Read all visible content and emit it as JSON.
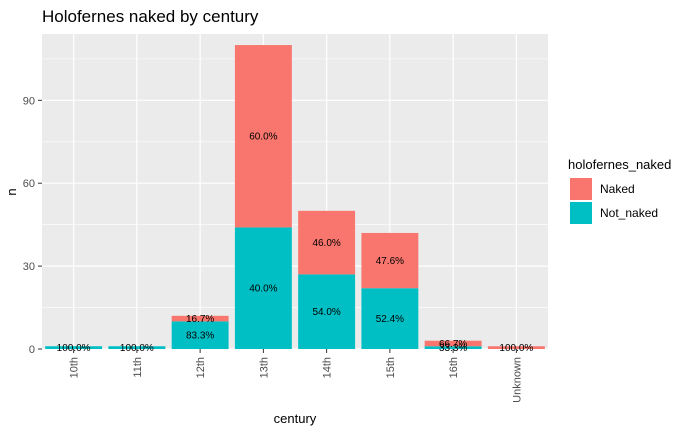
{
  "chart_data": {
    "type": "bar",
    "stacked": true,
    "title": "Holofernes naked by century",
    "xlabel": "century",
    "ylabel": "n",
    "ylim": [
      0,
      114
    ],
    "yticks": [
      0,
      30,
      60,
      90
    ],
    "grid": true,
    "legend_position": "right",
    "legend_title": "holofernes_naked",
    "categories": [
      "10th",
      "11th",
      "12th",
      "13th",
      "14th",
      "15th",
      "16th",
      "Unknown"
    ],
    "series": [
      {
        "name": "Not_naked",
        "color": "#00BFC4",
        "values": [
          1,
          1,
          10,
          44,
          27,
          22,
          1,
          0
        ],
        "labels": [
          "100.0%",
          "100.0%",
          "83.3%",
          "40.0%",
          "54.0%",
          "52.4%",
          "33.3%",
          ""
        ]
      },
      {
        "name": "Naked",
        "color": "#F8766D",
        "values": [
          0,
          0,
          2,
          66,
          23,
          20,
          2,
          1
        ],
        "labels": [
          "",
          "",
          "16.7%",
          "60.0%",
          "46.0%",
          "47.6%",
          "66.7%",
          "100.0%"
        ]
      }
    ],
    "legend_order": [
      "Naked",
      "Not_naked"
    ],
    "panel_background": "#EBEBEB",
    "grid_color": "#FFFFFF"
  }
}
